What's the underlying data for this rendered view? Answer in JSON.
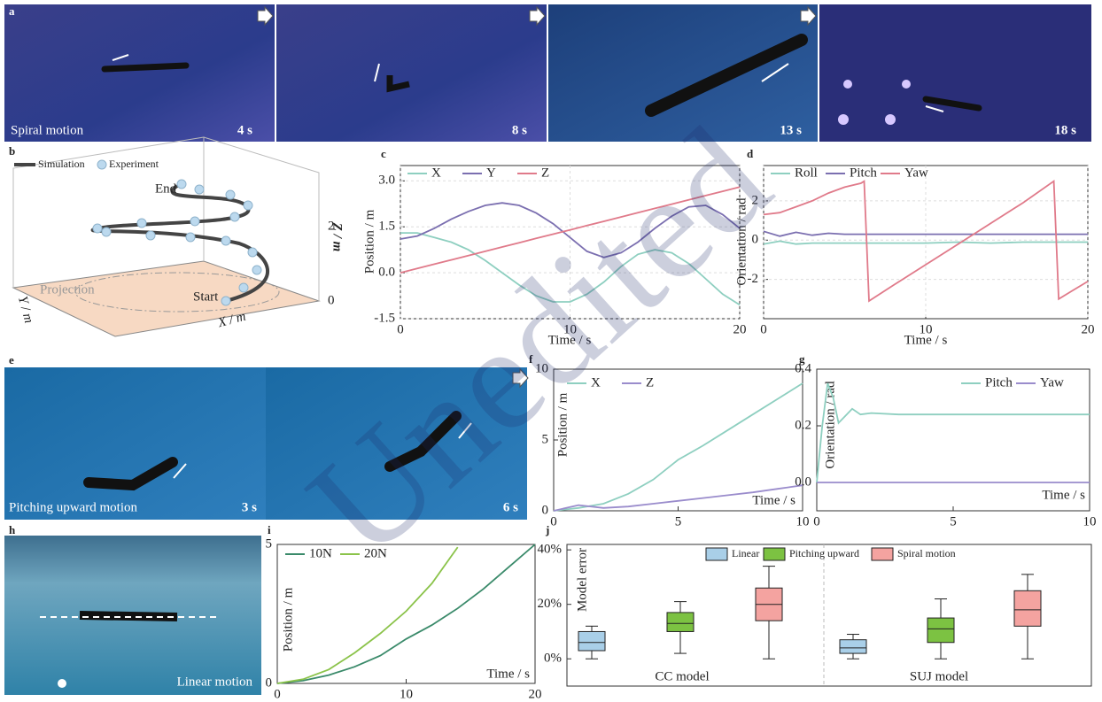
{
  "watermark": "Unedited",
  "photos": {
    "a": {
      "label": "a",
      "caption": "Spiral motion",
      "times": [
        "4 s",
        "8 s",
        "13 s",
        "18 s"
      ]
    },
    "e": {
      "label": "e",
      "caption": "Pitching upward motion",
      "times": [
        "3  s",
        "6  s"
      ]
    },
    "h": {
      "label": "h",
      "caption": "Linear motion"
    }
  },
  "panel_b": {
    "label": "b",
    "legend": [
      "Simulation",
      "Experiment"
    ],
    "end": "End",
    "start": "Start",
    "projection": "Projection",
    "zlabel": "Z / m",
    "xlabel": "X / m",
    "ylabel": "Y / m",
    "zticks": [
      0,
      2
    ]
  },
  "chart_data": [
    {
      "type": "line",
      "panel": "c",
      "xlabel": "Time / s",
      "ylabel": "Position / m",
      "grid": true,
      "x": [
        0,
        1,
        2,
        3,
        4,
        5,
        6,
        7,
        8,
        9,
        10,
        11,
        12,
        13,
        14,
        15,
        16,
        17,
        18,
        19,
        20
      ],
      "xlim": [
        0,
        20
      ],
      "xticks": [
        0,
        10,
        20
      ],
      "ylim": [
        -1.5,
        3.5
      ],
      "yticks": [
        -1.5,
        {
          "value": 0,
          "label": "0.0"
        },
        1.5,
        {
          "value": 3,
          "label": "3.0"
        }
      ],
      "series": [
        {
          "name": "X",
          "color": "#8ecfc0",
          "values": [
            1.3,
            1.3,
            1.15,
            1.0,
            0.75,
            0.4,
            0.0,
            -0.4,
            -0.75,
            -0.95,
            -0.95,
            -0.7,
            -0.3,
            0.2,
            0.6,
            0.75,
            0.65,
            0.3,
            -0.2,
            -0.7,
            -1.05
          ]
        },
        {
          "name": "Y",
          "color": "#7b6fb0",
          "values": [
            1.1,
            1.2,
            1.45,
            1.75,
            2.0,
            2.2,
            2.28,
            2.2,
            1.95,
            1.6,
            1.15,
            0.7,
            0.5,
            0.65,
            1.0,
            1.45,
            1.85,
            2.15,
            2.2,
            1.9,
            1.45
          ]
        },
        {
          "name": "Z",
          "color": "#e07a8a",
          "values": [
            0,
            0.14,
            0.28,
            0.42,
            0.56,
            0.7,
            0.84,
            0.98,
            1.12,
            1.26,
            1.4,
            1.54,
            1.68,
            1.82,
            1.96,
            2.1,
            2.24,
            2.38,
            2.52,
            2.66,
            2.8
          ]
        }
      ]
    },
    {
      "type": "line",
      "panel": "d",
      "xlabel": "Time / s",
      "ylabel": "Orientation / rad",
      "grid": true,
      "x": [
        0,
        1,
        2,
        3,
        4,
        5,
        6,
        6.2,
        6.5,
        8,
        10,
        12,
        14,
        16,
        17.9,
        18.2,
        19,
        20
      ],
      "xlim": [
        0,
        20
      ],
      "xticks": [
        0,
        10,
        20
      ],
      "ylim": [
        -4,
        3.8
      ],
      "yticks": [
        -2,
        0,
        2
      ],
      "series": [
        {
          "name": "Roll",
          "color": "#8ecfc0",
          "values": [
            -0.2,
            -0.05,
            -0.2,
            -0.15,
            -0.15,
            -0.15,
            -0.15,
            -0.15,
            -0.15,
            -0.15,
            -0.15,
            -0.1,
            -0.15,
            -0.1,
            -0.1,
            -0.1,
            -0.1,
            -0.1
          ]
        },
        {
          "name": "Pitch",
          "color": "#7b6fb0",
          "values": [
            0.45,
            0.2,
            0.4,
            0.25,
            0.35,
            0.3,
            0.3,
            0.3,
            0.3,
            0.3,
            0.3,
            0.3,
            0.3,
            0.3,
            0.3,
            0.3,
            0.3,
            0.3
          ]
        },
        {
          "name": "Yaw",
          "color": "#e07a8a",
          "values": [
            1.3,
            1.4,
            1.7,
            2.0,
            2.4,
            2.7,
            2.9,
            3.0,
            -3.1,
            -2.3,
            -1.25,
            -0.2,
            0.85,
            1.9,
            3.0,
            -3.0,
            -2.6,
            -2.1
          ]
        }
      ]
    },
    {
      "type": "line",
      "panel": "f",
      "xlabel": "Time / s",
      "ylabel": "Position / m",
      "grid": false,
      "x": [
        0,
        1,
        2,
        3,
        4,
        5,
        6,
        7,
        8,
        9,
        10
      ],
      "xlim": [
        0,
        10
      ],
      "xticks": [
        0,
        5,
        10
      ],
      "ylim": [
        0,
        10
      ],
      "yticks": [
        0,
        5,
        10
      ],
      "series": [
        {
          "name": "X",
          "color": "#8ecfc0",
          "values": [
            0,
            0.2,
            0.5,
            1.2,
            2.2,
            3.6,
            4.6,
            5.7,
            6.8,
            7.9,
            9.0
          ]
        },
        {
          "name": "Z",
          "color": "#9a8ccc",
          "values": [
            0,
            0.4,
            0.2,
            0.3,
            0.5,
            0.7,
            0.9,
            1.1,
            1.3,
            1.55,
            1.8
          ]
        }
      ]
    },
    {
      "type": "line",
      "panel": "g",
      "xlabel": "Time / s",
      "ylabel": "Orientation / rad",
      "grid": false,
      "x": [
        0,
        0.2,
        0.4,
        0.6,
        0.8,
        1.0,
        1.3,
        1.6,
        2,
        3,
        5,
        10
      ],
      "xlim": [
        0,
        10
      ],
      "xticks": [
        0,
        5,
        10
      ],
      "ylim": [
        -0.1,
        0.4
      ],
      "yticks": [
        {
          "value": 0,
          "label": "0.0"
        },
        0.2,
        0.4
      ],
      "series": [
        {
          "name": "Pitch",
          "color": "#8ecfc0",
          "values": [
            0,
            0.2,
            0.35,
            0.3,
            0.21,
            0.23,
            0.26,
            0.24,
            0.245,
            0.24,
            0.24,
            0.24
          ]
        },
        {
          "name": "Yaw",
          "color": "#9a8ccc",
          "values": [
            0,
            0,
            0,
            0,
            0,
            0,
            0,
            0,
            0,
            0,
            0,
            0
          ]
        }
      ]
    },
    {
      "type": "line",
      "panel": "i",
      "xlabel": "Time / s",
      "ylabel": "Position / m",
      "grid": false,
      "x": [
        0,
        2,
        4,
        6,
        8,
        10,
        12,
        14,
        16,
        18,
        20
      ],
      "xlim": [
        0,
        20
      ],
      "xticks": [
        0,
        10,
        20
      ],
      "ylim": [
        0,
        5
      ],
      "yticks": [
        0,
        5
      ],
      "series": [
        {
          "name": "10N",
          "color": "#3a8a6a",
          "values": [
            0,
            0.1,
            0.3,
            0.6,
            1.0,
            1.6,
            2.1,
            2.7,
            3.4,
            4.2,
            5.0
          ]
        },
        {
          "name": "20N",
          "color": "#8bc34a",
          "values": [
            0,
            0.15,
            0.5,
            1.1,
            1.8,
            2.6,
            3.6,
            4.9,
            null,
            null,
            null
          ]
        }
      ]
    },
    {
      "type": "box",
      "panel": "j",
      "ylabel": "Model error",
      "categories": [
        "CC model",
        "SUJ model"
      ],
      "ylim": [
        -10,
        42
      ],
      "yticks": [
        {
          "value": 0,
          "label": "0%"
        },
        {
          "value": 20,
          "label": "20%"
        },
        {
          "value": 40,
          "label": "40%"
        }
      ],
      "series": [
        {
          "name": "Linear",
          "color": "#a9cfe8",
          "min": [
            0,
            0
          ],
          "q1": [
            3,
            2
          ],
          "median": [
            6,
            4
          ],
          "q3": [
            10,
            7
          ],
          "max": [
            12,
            9
          ]
        },
        {
          "name": "Pitching upward",
          "color": "#7cc242",
          "min": [
            2,
            0
          ],
          "q1": [
            10,
            6
          ],
          "median": [
            13,
            11
          ],
          "q3": [
            17,
            15
          ],
          "max": [
            21,
            22
          ]
        },
        {
          "name": "Spiral motion",
          "color": "#f4a3a0",
          "min": [
            0,
            0
          ],
          "q1": [
            14,
            12
          ],
          "median": [
            20,
            18
          ],
          "q3": [
            26,
            25
          ],
          "max": [
            34,
            31
          ]
        }
      ]
    }
  ]
}
